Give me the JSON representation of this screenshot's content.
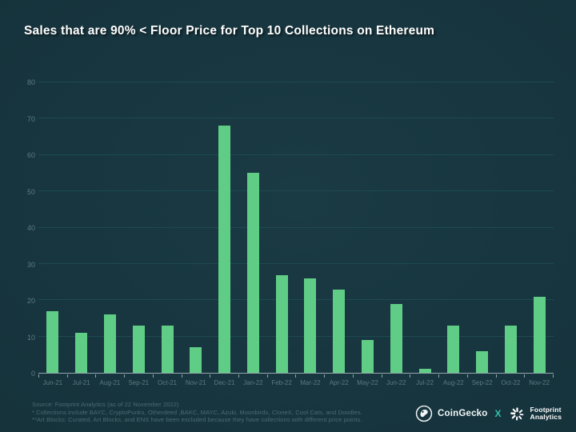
{
  "slide": {
    "background_color": "#16333c",
    "accent_green": "#60cd87",
    "gridline_color": "#1d4a52",
    "axis_label_color": "#5a7a80"
  },
  "chart_data": {
    "type": "bar",
    "title": "Sales that are 90% < Floor Price for Top 10 Collections on Ethereum",
    "categories": [
      "Jun-21",
      "Jul-21",
      "Aug-21",
      "Sep-21",
      "Oct-21",
      "Nov-21",
      "Dec-21",
      "Jan-22",
      "Feb-22",
      "Mar-22",
      "Apr-22",
      "May-22",
      "Jun-22",
      "Jul-22",
      "Aug-22",
      "Sep-22",
      "Oct-22",
      "Nov-22"
    ],
    "values": [
      17,
      11,
      16,
      13,
      13,
      7,
      68,
      55,
      27,
      26,
      23,
      9,
      19,
      1,
      13,
      6,
      13,
      21
    ],
    "xlabel": "",
    "ylabel": "",
    "ylim": [
      0,
      80
    ],
    "yticks": [
      0,
      10,
      20,
      30,
      40,
      50,
      60,
      70,
      80
    ],
    "grid": true,
    "legend": false,
    "bar_color": "#60cd87"
  },
  "footer": {
    "source": "Source:  Footprint Analytics (as of 22 November 2022)",
    "note1": "*.Collections include BAYC, CryptoPunks, Otherdeed ,BAKC, MAYC, Azuki, Moonbirds, CloneX, Cool Cats, and Doodles.",
    "note2": "**Art Blocks: Curated, Art Blocks, and ENS have been excluded because they have collections with different price points."
  },
  "logos": {
    "coingecko_label": "CoinGecko",
    "separator": "X",
    "footprint_line1": "Footprint",
    "footprint_line2": "Analytics"
  }
}
